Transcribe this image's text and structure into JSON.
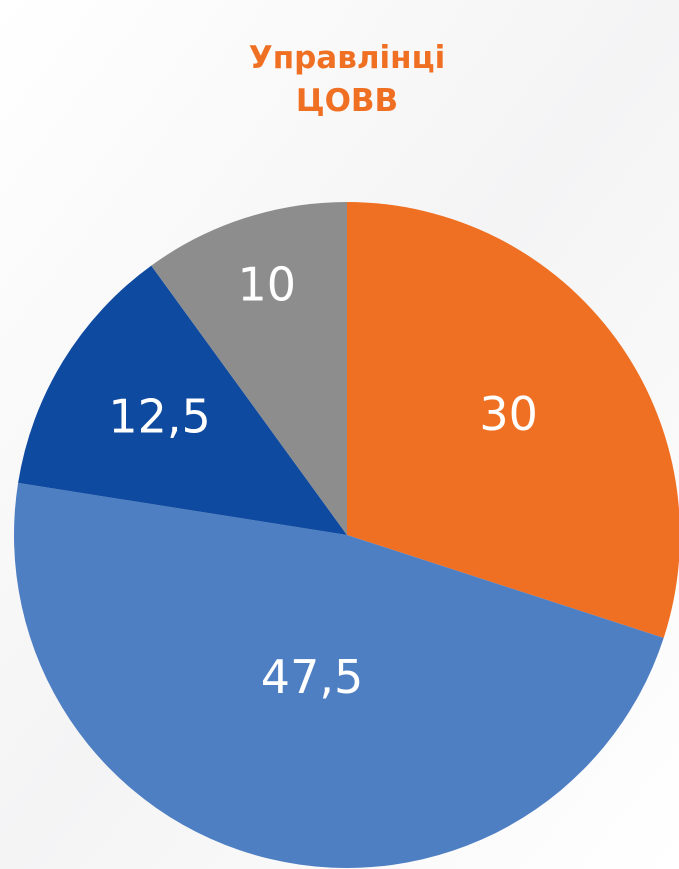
{
  "chart_data": {
    "type": "pie",
    "title": [
      "Управлінці",
      "ЦОВВ"
    ],
    "categories": [
      null,
      null,
      null,
      null
    ],
    "values": [
      30,
      47.5,
      12.5,
      10
    ],
    "value_labels": [
      "30",
      "47,5",
      "12,5",
      "10"
    ],
    "colors": [
      "#f07023",
      "#4f7fc3",
      "#0e4a9f",
      "#8d8d8d"
    ]
  }
}
